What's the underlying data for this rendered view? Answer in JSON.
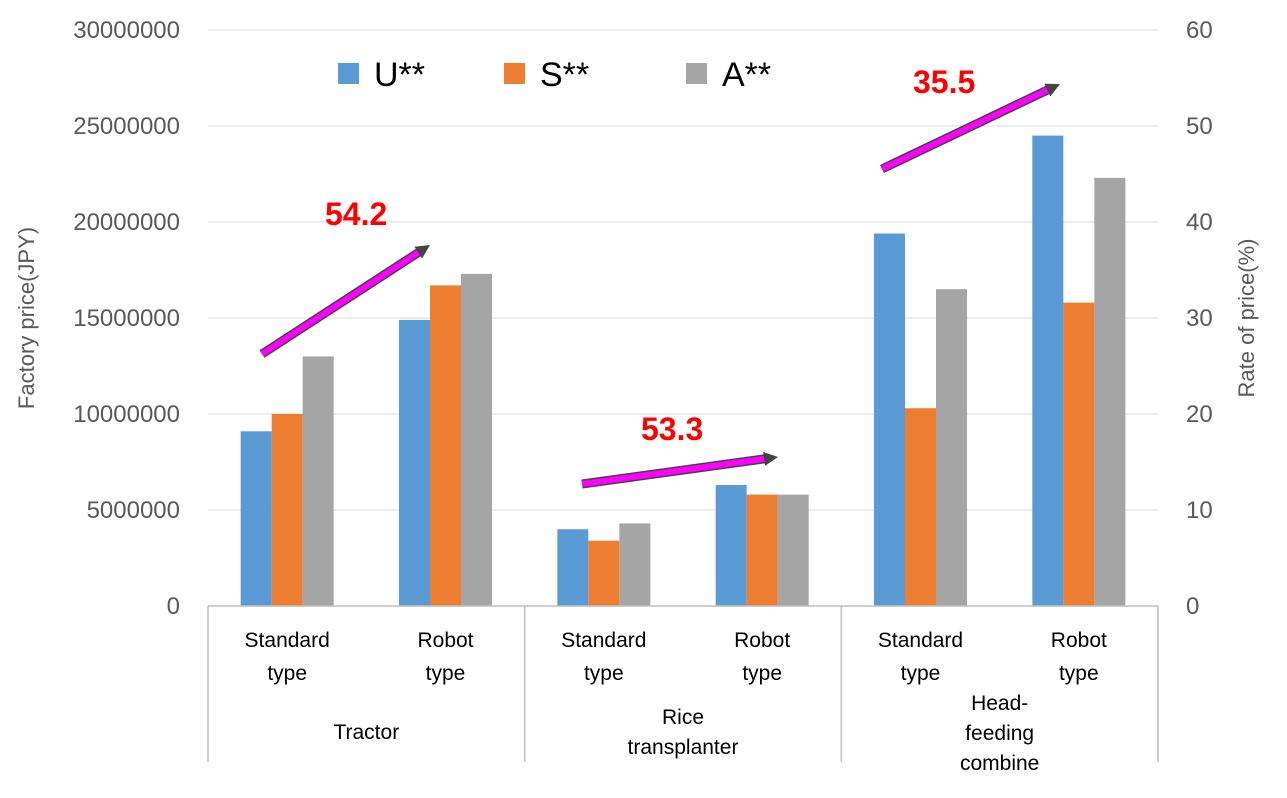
{
  "chart_data": {
    "type": "bar",
    "y_left_label": "Factory price(JPY)",
    "y_right_label": "Rate of price(%)",
    "y_left_range": [
      0,
      30000000
    ],
    "y_left_ticks": [
      0,
      5000000,
      10000000,
      15000000,
      20000000,
      25000000,
      30000000
    ],
    "y_right_range": [
      0,
      60
    ],
    "y_right_ticks": [
      0,
      10,
      20,
      30,
      40,
      50,
      60
    ],
    "grid": true,
    "legend_position": "top-center",
    "groups": [
      {
        "label_lines": [
          "Tractor"
        ],
        "subcategories": [
          [
            "Standard",
            "type"
          ],
          [
            "Robot",
            "type"
          ]
        ]
      },
      {
        "label_lines": [
          "Rice",
          "transplanter"
        ],
        "subcategories": [
          [
            "Standard",
            "type"
          ],
          [
            "Robot",
            "type"
          ]
        ]
      },
      {
        "label_lines": [
          "Head-",
          "feeding",
          "combine"
        ],
        "subcategories": [
          [
            "Standard",
            "type"
          ],
          [
            "Robot",
            "type"
          ]
        ]
      }
    ],
    "series": [
      {
        "name": "U**",
        "color": "#5b9bd5",
        "values": [
          9100000,
          14900000,
          4000000,
          6300000,
          19400000,
          24500000
        ]
      },
      {
        "name": "S**",
        "color": "#ed7d31",
        "values": [
          10000000,
          16700000,
          3400000,
          5800000,
          10300000,
          15800000
        ]
      },
      {
        "name": "A**",
        "color": "#a5a5a5",
        "values": [
          13000000,
          17300000,
          4300000,
          5800000,
          16500000,
          22300000
        ]
      }
    ],
    "annotations": [
      {
        "text": "54.2",
        "group": "Tractor"
      },
      {
        "text": "53.3",
        "group": "Rice transplanter"
      },
      {
        "text": "35.5",
        "group": "Head-feeding combine"
      }
    ],
    "arrow_color": "#ff00ff"
  }
}
